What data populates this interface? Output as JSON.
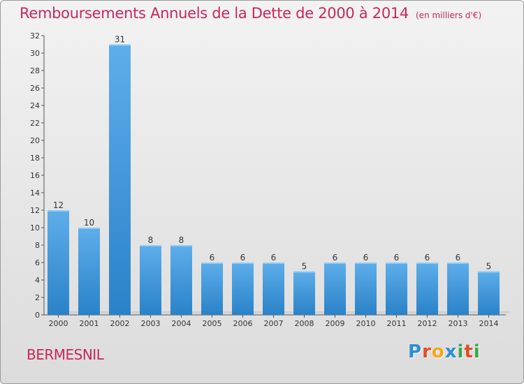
{
  "title": "Remboursements Annuels de la Dette de 2000 à 2014",
  "unit": "(en milliers d'€)",
  "commune": "BERMESNIL",
  "logo": {
    "letters": [
      "P",
      "r",
      "o",
      "x",
      "i",
      "t",
      "i"
    ],
    "colors": [
      "#2b8fd6",
      "#e84a25",
      "#f5a61a",
      "#2b8fd6",
      "#3aa84a",
      "#e84a25",
      "#3aa84a"
    ]
  },
  "colors": {
    "accent": "#c8285a",
    "bar": "#3a96d8"
  },
  "chart_data": {
    "type": "bar",
    "categories": [
      "2000",
      "2001",
      "2002",
      "2003",
      "2004",
      "2005",
      "2006",
      "2007",
      "2008",
      "2009",
      "2010",
      "2011",
      "2012",
      "2013",
      "2014"
    ],
    "values": [
      12,
      10,
      31,
      8,
      8,
      6,
      6,
      6,
      5,
      6,
      6,
      6,
      6,
      6,
      5
    ],
    "ylim": [
      0,
      32
    ],
    "yticks": [
      0,
      2,
      4,
      6,
      8,
      10,
      12,
      14,
      16,
      18,
      20,
      22,
      24,
      26,
      28,
      30,
      32
    ],
    "grid": false,
    "title": "Remboursements Annuels de la Dette de 2000 à 2014",
    "xlabel": "",
    "ylabel": ""
  }
}
